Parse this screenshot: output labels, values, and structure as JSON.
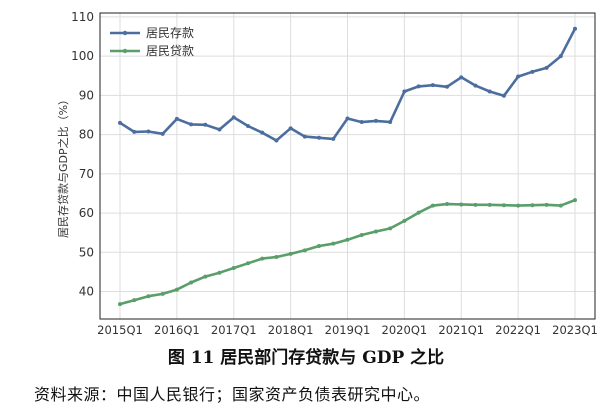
{
  "chart_data": {
    "type": "line",
    "ylabel": "居民存贷款与GDP之比（%）",
    "ylim": [
      33,
      111
    ],
    "yticks": [
      40,
      50,
      60,
      70,
      80,
      90,
      100,
      110
    ],
    "grid": true,
    "legend_position": "top-left",
    "x": [
      "2015Q1",
      "2015Q2",
      "2015Q3",
      "2015Q4",
      "2016Q1",
      "2016Q2",
      "2016Q3",
      "2016Q4",
      "2017Q1",
      "2017Q2",
      "2017Q3",
      "2017Q4",
      "2018Q1",
      "2018Q2",
      "2018Q3",
      "2018Q4",
      "2019Q1",
      "2019Q2",
      "2019Q3",
      "2019Q4",
      "2020Q1",
      "2020Q2",
      "2020Q3",
      "2020Q4",
      "2021Q1",
      "2021Q2",
      "2021Q3",
      "2021Q4",
      "2022Q1",
      "2022Q2",
      "2022Q3",
      "2022Q4",
      "2023Q1"
    ],
    "xtick_labels": [
      "2015Q1",
      "2016Q1",
      "2017Q1",
      "2018Q1",
      "2019Q1",
      "2020Q1",
      "2021Q1",
      "2022Q1",
      "2023Q1"
    ],
    "series": [
      {
        "name": "居民存款",
        "color": "#4c6e9e",
        "values": [
          83.0,
          80.7,
          80.8,
          80.2,
          84.0,
          82.6,
          82.5,
          81.3,
          84.4,
          82.2,
          80.5,
          78.5,
          81.6,
          79.5,
          79.2,
          78.9,
          84.1,
          83.2,
          83.5,
          83.2,
          91.0,
          92.3,
          92.6,
          92.2,
          94.6,
          92.5,
          91.0,
          89.9,
          94.8,
          96.0,
          97.0,
          100.0,
          107.0
        ]
      },
      {
        "name": "居民贷款",
        "color": "#5a9e6a",
        "values": [
          36.8,
          37.8,
          38.8,
          39.4,
          40.5,
          42.3,
          43.8,
          44.8,
          46.0,
          47.2,
          48.4,
          48.8,
          49.6,
          50.5,
          51.6,
          52.2,
          53.2,
          54.4,
          55.3,
          56.1,
          58.0,
          60.1,
          61.9,
          62.3,
          62.2,
          62.1,
          62.1,
          62.0,
          61.9,
          62.0,
          62.1,
          61.9,
          63.3
        ]
      }
    ]
  },
  "caption": "图 11  居民部门存贷款与 GDP 之比",
  "source": "资料来源：中国人民银行；国家资产负债表研究中心。"
}
